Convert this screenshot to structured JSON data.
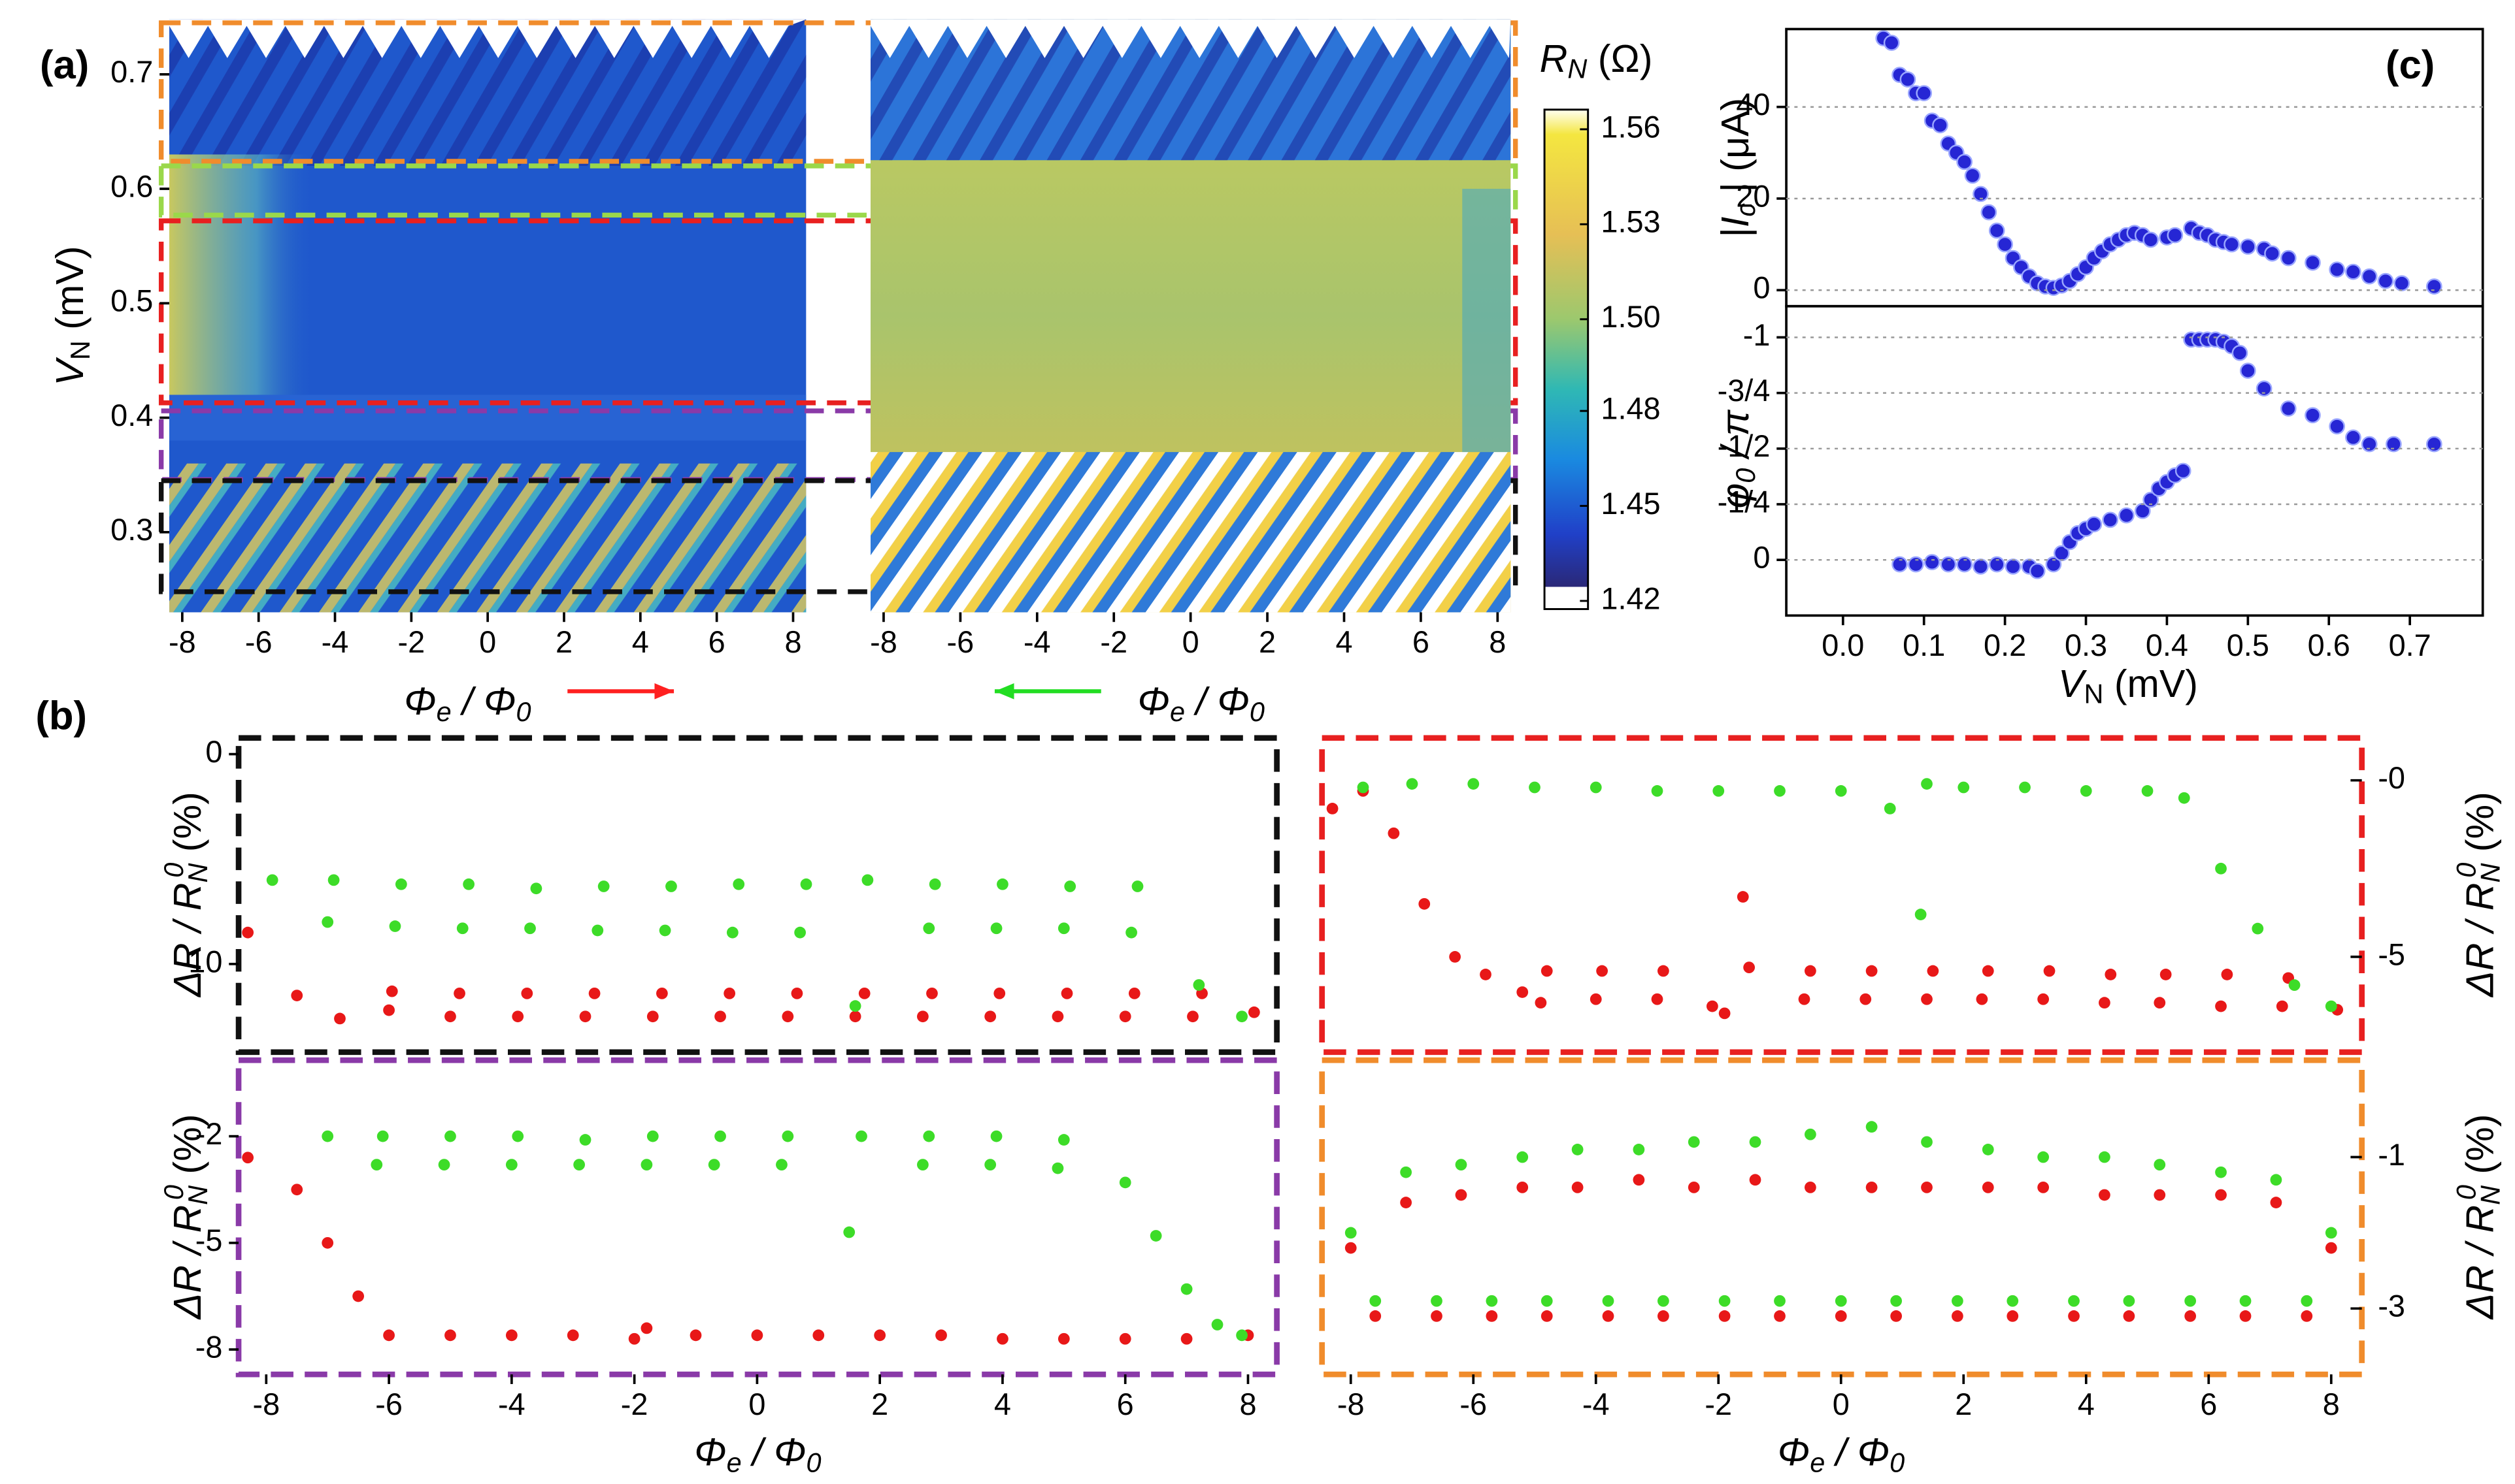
{
  "chart_data": [
    {
      "type": "heatmap",
      "panel": "(a)",
      "ylabel": [
        "V",
        "N",
        " (mV)"
      ],
      "xlabel": [
        "Φ",
        "e",
        " / Φ",
        "0"
      ],
      "arrow_color": "#ff2020",
      "xlim": [
        -8.34,
        8.34
      ],
      "ylim": [
        0.23,
        0.748
      ],
      "xticks": [
        -8,
        -6,
        -4,
        -2,
        0,
        2,
        4,
        6,
        8
      ],
      "yticks": [
        0.3,
        0.4,
        0.5,
        0.6,
        0.7
      ],
      "regions": [
        {
          "color": "#f08c2c",
          "ylim": [
            0.745,
            0.624
          ]
        },
        {
          "color": "#9ad84a",
          "ylim": [
            0.62,
            0.577
          ]
        },
        {
          "color": "#e82020",
          "ylim": [
            0.572,
            0.413
          ]
        },
        {
          "color": "#8a3aa8",
          "ylim": [
            0.406,
            0.346
          ]
        },
        {
          "color": "#111111",
          "ylim": [
            0.345,
            0.248
          ]
        }
      ],
      "colorbar": {
        "label": [
          "R",
          "N",
          " (Ω)"
        ],
        "lim": [
          1.4155,
          1.568
        ],
        "ticks": [
          {
            "value": 1.562,
            "label": "1.56"
          },
          {
            "value": 1.533,
            "label": "1.53"
          },
          {
            "value": 1.504,
            "label": "1.50"
          },
          {
            "value": 1.476,
            "label": "1.48"
          },
          {
            "value": 1.447,
            "label": "1.45"
          },
          {
            "value": 1.418,
            "label": "1.42"
          }
        ]
      }
    },
    {
      "type": "heatmap",
      "xlabel": [
        "Φ",
        "e",
        " / Φ",
        "0"
      ],
      "arrow_color": "#22dd22",
      "xlim": [
        -8.34,
        8.34
      ],
      "ylim": [
        0.23,
        0.748
      ],
      "xticks": [
        -8,
        -6,
        -4,
        -2,
        0,
        2,
        4,
        6,
        8
      ]
    },
    {
      "type": "scatter",
      "panel": "(c)",
      "ylabel": [
        "|",
        "I",
        "c",
        " | (μA)"
      ],
      "x": [
        0.05,
        0.06,
        0.07,
        0.08,
        0.09,
        0.1,
        0.11,
        0.12,
        0.13,
        0.14,
        0.15,
        0.16,
        0.17,
        0.18,
        0.19,
        0.2,
        0.21,
        0.22,
        0.23,
        0.24,
        0.25,
        0.26,
        0.27,
        0.28,
        0.29,
        0.3,
        0.31,
        0.32,
        0.33,
        0.34,
        0.35,
        0.36,
        0.37,
        0.38,
        0.4,
        0.41,
        0.43,
        0.44,
        0.45,
        0.46,
        0.47,
        0.48,
        0.5,
        0.52,
        0.53,
        0.55,
        0.58,
        0.61,
        0.63,
        0.65,
        0.67,
        0.69,
        0.73
      ],
      "series": [
        {
          "color": "#2626d4",
          "values": [
            55,
            54,
            47,
            46,
            43,
            43,
            37,
            36,
            32,
            30,
            28,
            25,
            21,
            17,
            13,
            10,
            7,
            5,
            3,
            1.5,
            0.8,
            0.5,
            1,
            2,
            3.5,
            5,
            7,
            8.5,
            10,
            11,
            12,
            12.5,
            12,
            11,
            11.5,
            12,
            13.5,
            12.5,
            12,
            11,
            10.5,
            10,
            9.5,
            9,
            8,
            7,
            6,
            4.5,
            4,
            3,
            2,
            1.5,
            0.8
          ]
        }
      ],
      "xlim": [
        -0.07,
        0.79
      ],
      "ylim": [
        -3.5,
        57
      ],
      "yticks": [
        0,
        20,
        40
      ],
      "grid": true
    },
    {
      "type": "scatter",
      "ylabel": [
        "φ",
        "0",
        " / π"
      ],
      "xlabel": [
        "V",
        "N",
        " (mV)"
      ],
      "x": [
        0.07,
        0.09,
        0.11,
        0.13,
        0.15,
        0.17,
        0.19,
        0.21,
        0.23,
        0.24,
        0.26,
        0.27,
        0.28,
        0.29,
        0.3,
        0.31,
        0.33,
        0.35,
        0.37,
        0.38,
        0.39,
        0.4,
        0.41,
        0.42,
        0.43,
        0.44,
        0.45,
        0.46,
        0.47,
        0.48,
        0.49,
        0.5,
        0.52,
        0.55,
        0.58,
        0.61,
        0.63,
        0.65,
        0.68,
        0.73
      ],
      "series": [
        {
          "color": "#2626d4",
          "values": [
            0.02,
            0.02,
            0.01,
            0.02,
            0.02,
            0.03,
            0.02,
            0.03,
            0.03,
            0.05,
            0.02,
            -0.03,
            -0.08,
            -0.12,
            -0.14,
            -0.16,
            -0.18,
            -0.2,
            -0.22,
            -0.27,
            -0.32,
            -0.35,
            -0.38,
            -0.4,
            -0.99,
            -0.99,
            -0.99,
            -0.99,
            -0.98,
            -0.96,
            -0.93,
            -0.85,
            -0.77,
            -0.68,
            -0.65,
            -0.6,
            -0.55,
            -0.52,
            -0.52,
            -0.52
          ]
        }
      ],
      "xlim": [
        -0.07,
        0.79
      ],
      "ylim": [
        0.25,
        -1.14
      ],
      "yticks": [
        -1,
        {
          "value": -0.75,
          "label": "-3/4"
        },
        {
          "value": -0.5,
          "label": "-1/2"
        },
        {
          "value": -0.25,
          "label": "-1/4"
        },
        0
      ],
      "xticks": [
        {
          "value": 0,
          "label": "0.0"
        },
        0.1,
        0.2,
        0.3,
        0.4,
        0.5,
        0.6,
        0.7
      ],
      "grid": true
    },
    {
      "type": "scatter",
      "panel": "(b)",
      "frame_color": "#111111",
      "ylabel": [
        "ΔR / R",
        "N",
        "0",
        " (%)"
      ],
      "xlim": [
        -8.45,
        8.47
      ],
      "ylim": [
        -14.2,
        0.77
      ],
      "yticks": [
        0,
        -10
      ],
      "series": [
        {
          "color": "#e81818",
          "x": [
            -8.3,
            -7.5,
            -6.8,
            -6,
            -5.95,
            -5,
            -4.85,
            -3.9,
            -3.75,
            -2.8,
            -2.65,
            -1.7,
            -1.55,
            -0.6,
            -0.45,
            0.5,
            0.65,
            1.6,
            1.75,
            2.7,
            2.85,
            3.8,
            3.95,
            4.9,
            5.05,
            6,
            6.15,
            7.1,
            7.25,
            8.1
          ],
          "values": [
            -8.5,
            -11.5,
            -12.6,
            -12.2,
            -11.3,
            -12.5,
            -11.4,
            -12.5,
            -11.4,
            -12.5,
            -11.4,
            -12.5,
            -11.4,
            -12.5,
            -11.4,
            -12.5,
            -11.4,
            -12.5,
            -11.4,
            -12.5,
            -11.4,
            -12.5,
            -11.4,
            -12.5,
            -11.4,
            -12.5,
            -11.4,
            -12.5,
            -11.4,
            -12.3
          ]
        },
        {
          "color": "#3ddc28",
          "x": [
            -7.9,
            -7,
            -6.9,
            -5.9,
            -5.8,
            -4.8,
            -4.7,
            -3.7,
            -3.6,
            -2.6,
            -2.5,
            -1.5,
            -1.4,
            -0.4,
            -0.3,
            0.7,
            0.8,
            1.6,
            1.8,
            2.8,
            2.9,
            3.9,
            4,
            5,
            5.1,
            6.1,
            6.2,
            7.2,
            7.9
          ],
          "values": [
            -6,
            -8,
            -6,
            -8.2,
            -6.2,
            -8.3,
            -6.2,
            -8.3,
            -6.4,
            -8.4,
            -6.3,
            -8.4,
            -6.3,
            -8.5,
            -6.2,
            -8.5,
            -6.2,
            -12,
            -6,
            -8.3,
            -6.2,
            -8.3,
            -6.2,
            -8.3,
            -6.3,
            -8.5,
            -6.3,
            -11,
            -12.5
          ]
        }
      ]
    },
    {
      "type": "scatter",
      "frame_color": "#e82020",
      "ylabel": [
        "ΔR / R",
        "N",
        "0",
        " (%)"
      ],
      "xlim": [
        -8.47,
        8.5
      ],
      "ylim": [
        -7.7,
        1.2
      ],
      "yticks": [
        {
          "value": 0,
          "label": "-0"
        },
        -5
      ],
      "series": [
        {
          "color": "#e81818",
          "x": [
            -8.3,
            -7.8,
            -7.3,
            -6.8,
            -6.3,
            -5.8,
            -5.2,
            -4.9,
            -4.8,
            -4,
            -3.9,
            -3,
            -2.9,
            -2.1,
            -1.9,
            -1.6,
            -1.5,
            -0.6,
            -0.5,
            0.4,
            0.5,
            1.4,
            1.5,
            2.3,
            2.4,
            3.3,
            3.4,
            4.3,
            4.4,
            5.2,
            5.3,
            6.2,
            6.3,
            7.2,
            7.3,
            8.1
          ],
          "values": [
            -0.8,
            -0.3,
            -1.5,
            -3.5,
            -5,
            -5.5,
            -6,
            -6.3,
            -5.4,
            -6.2,
            -5.4,
            -6.2,
            -5.4,
            -6.4,
            -6.6,
            -3.3,
            -5.3,
            -6.2,
            -5.4,
            -6.2,
            -5.4,
            -6.2,
            -5.4,
            -6.2,
            -5.4,
            -6.2,
            -5.4,
            -6.3,
            -5.5,
            -6.3,
            -5.5,
            -6.4,
            -5.5,
            -6.4,
            -5.6,
            -6.5
          ]
        },
        {
          "color": "#3ddc28",
          "x": [
            -7.8,
            -7,
            -6,
            -5,
            -4,
            -3,
            -2,
            -1,
            0,
            0.8,
            1.3,
            1.4,
            2,
            3,
            4,
            5,
            5.6,
            6.2,
            6.8,
            7.4,
            8
          ],
          "values": [
            -0.2,
            -0.1,
            -0.1,
            -0.2,
            -0.2,
            -0.3,
            -0.3,
            -0.3,
            -0.3,
            -0.8,
            -3.8,
            -0.1,
            -0.2,
            -0.2,
            -0.3,
            -0.3,
            -0.5,
            -2.5,
            -4.2,
            -5.8,
            -6.4
          ]
        }
      ]
    },
    {
      "type": "scatter",
      "frame_color": "#8a3aa8",
      "ylabel": [
        "ΔR / R",
        "N",
        "0",
        " (%)"
      ],
      "xlabel": [
        "Φ",
        "e",
        " / Φ",
        "0"
      ],
      "xlim": [
        -8.45,
        8.47
      ],
      "ylim": [
        -8.7,
        0.14
      ],
      "yticks": [
        -2,
        -5,
        -8
      ],
      "xticks": [
        -8,
        -6,
        -4,
        -2,
        0,
        2,
        4,
        6,
        8
      ],
      "series": [
        {
          "color": "#e81818",
          "x": [
            -8.3,
            -7.5,
            -7,
            -6.5,
            -6,
            -5,
            -4,
            -3,
            -2,
            -1.8,
            -1,
            0,
            1,
            2,
            3,
            4,
            5,
            6,
            7,
            8
          ],
          "values": [
            -2.6,
            -3.5,
            -5,
            -6.5,
            -7.6,
            -7.6,
            -7.6,
            -7.6,
            -7.7,
            -7.4,
            -7.6,
            -7.6,
            -7.6,
            -7.6,
            -7.6,
            -7.7,
            -7.7,
            -7.7,
            -7.7,
            -7.6
          ]
        },
        {
          "color": "#3ddc28",
          "x": [
            -7,
            -6.2,
            -6.1,
            -5.1,
            -5,
            -4,
            -3.9,
            -2.9,
            -2.8,
            -1.8,
            -1.7,
            -0.7,
            -0.6,
            0.4,
            0.5,
            1.5,
            1.7,
            2.7,
            2.8,
            3.8,
            3.9,
            4.9,
            5,
            6,
            6.5,
            7,
            7.5,
            7.9
          ],
          "values": [
            -2,
            -2.8,
            -2,
            -2.8,
            -2,
            -2.8,
            -2,
            -2.8,
            -2.1,
            -2.8,
            -2,
            -2.8,
            -2,
            -2.8,
            -2,
            -4.7,
            -2,
            -2.8,
            -2,
            -2.8,
            -2,
            -2.9,
            -2.1,
            -3.3,
            -4.8,
            -6.3,
            -7.3,
            -7.6
          ]
        }
      ]
    },
    {
      "type": "scatter",
      "frame_color": "#f08c2c",
      "ylabel": [
        "ΔR / R",
        "N",
        "0",
        " (%)"
      ],
      "xlabel": [
        "Φ",
        "e",
        " / Φ",
        "0"
      ],
      "xlim": [
        -8.47,
        8.5
      ],
      "ylim": [
        -3.87,
        0.28
      ],
      "yticks": [
        -1,
        -3
      ],
      "xticks": [
        -8,
        -6,
        -4,
        -2,
        0,
        2,
        4,
        6,
        8
      ],
      "series": [
        {
          "color": "#e81818",
          "x": [
            -8,
            -7.6,
            -7.1,
            -6.6,
            -6.2,
            -5.7,
            -5.2,
            -4.8,
            -4.3,
            -3.8,
            -3.3,
            -2.9,
            -2.4,
            -1.9,
            -1.4,
            -1,
            -0.5,
            0,
            0.5,
            0.9,
            1.4,
            1.9,
            2.4,
            2.8,
            3.3,
            3.8,
            4.3,
            4.7,
            5.2,
            5.7,
            6.2,
            6.6,
            7.1,
            7.6,
            8
          ],
          "values": [
            -2.2,
            -3.1,
            -1.6,
            -3.1,
            -1.5,
            -3.1,
            -1.4,
            -3.1,
            -1.4,
            -3.1,
            -1.3,
            -3.1,
            -1.4,
            -3.1,
            -1.3,
            -3.1,
            -1.4,
            -3.1,
            -1.4,
            -3.1,
            -1.4,
            -3.1,
            -1.4,
            -3.1,
            -1.4,
            -3.1,
            -1.5,
            -3.1,
            -1.5,
            -3.1,
            -1.5,
            -3.1,
            -1.6,
            -3.1,
            -2.2
          ]
        },
        {
          "color": "#3ddc28",
          "x": [
            -8,
            -7.6,
            -7.1,
            -6.6,
            -6.2,
            -5.7,
            -5.2,
            -4.8,
            -4.3,
            -3.8,
            -3.3,
            -2.9,
            -2.4,
            -1.9,
            -1.4,
            -1,
            -0.5,
            0,
            0.5,
            0.9,
            1.4,
            1.9,
            2.4,
            2.8,
            3.3,
            3.8,
            4.3,
            4.7,
            5.2,
            5.7,
            6.2,
            6.6,
            7.1,
            7.6,
            8
          ],
          "values": [
            -2,
            -2.9,
            -1.2,
            -2.9,
            -1.1,
            -2.9,
            -1,
            -2.9,
            -0.9,
            -2.9,
            -0.9,
            -2.9,
            -0.8,
            -2.9,
            -0.8,
            -2.9,
            -0.7,
            -2.9,
            -0.6,
            -2.9,
            -0.8,
            -2.9,
            -0.9,
            -2.9,
            -1,
            -2.9,
            -1,
            -2.9,
            -1.1,
            -2.9,
            -1.2,
            -2.9,
            -1.3,
            -2.9,
            -2
          ]
        }
      ]
    }
  ]
}
